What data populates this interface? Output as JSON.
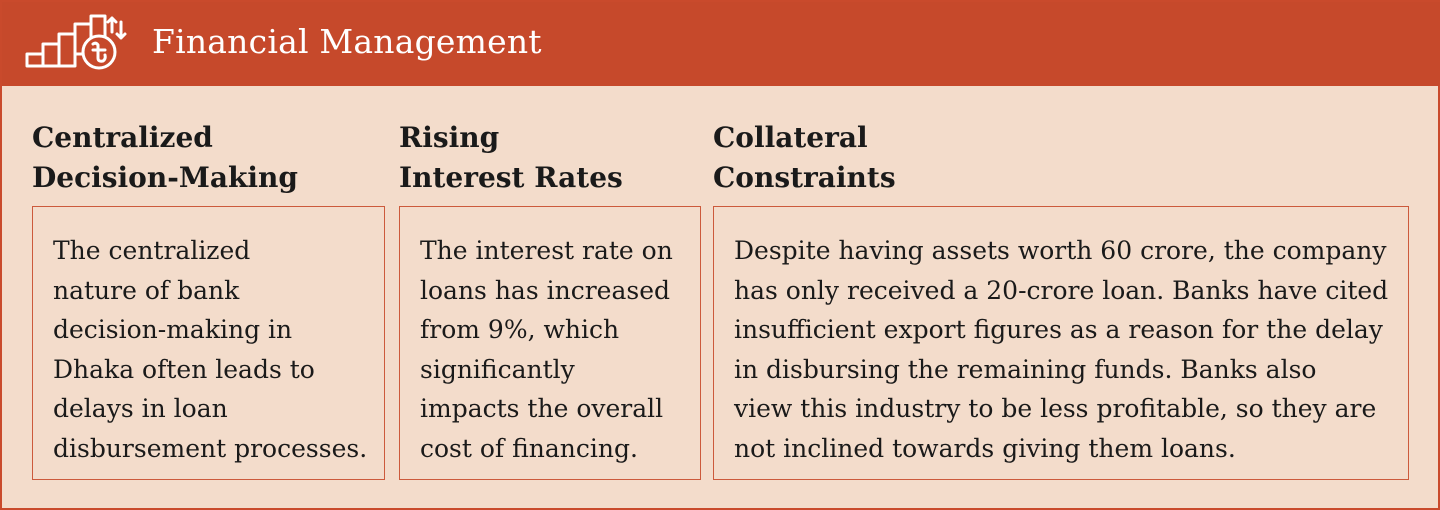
{
  "header": {
    "title": "Financial Management",
    "icon": "finance-chart-taka-icon",
    "background_color": "#c6492b",
    "text_color": "#ffffff"
  },
  "panel_background": "#f3dccb",
  "border_color": "#cc5a3c",
  "columns": [
    {
      "title_lines": [
        "Centralized",
        "Decision-Making"
      ],
      "body_lines": [
        "The centralized",
        "nature of bank",
        "decision-making in",
        "Dhaka often leads to",
        "delays in loan",
        "disbursement processes."
      ]
    },
    {
      "title_lines": [
        "Rising",
        "Interest Rates"
      ],
      "body_lines": [
        "The interest rate on",
        "loans has increased",
        "from 9%, which",
        "significantly",
        "impacts the overall",
        "cost of financing."
      ]
    },
    {
      "title_lines": [
        "Collateral",
        "Constraints"
      ],
      "body_lines": [
        "Despite having assets worth 60 crore, the company",
        "has only received a 20-crore loan. Banks have cited",
        "insufficient export figures as a reason for the delay",
        "in disbursing the remaining funds. Banks also",
        "view this industry to be less profitable, so they are",
        "not inclined towards giving them loans."
      ]
    }
  ]
}
